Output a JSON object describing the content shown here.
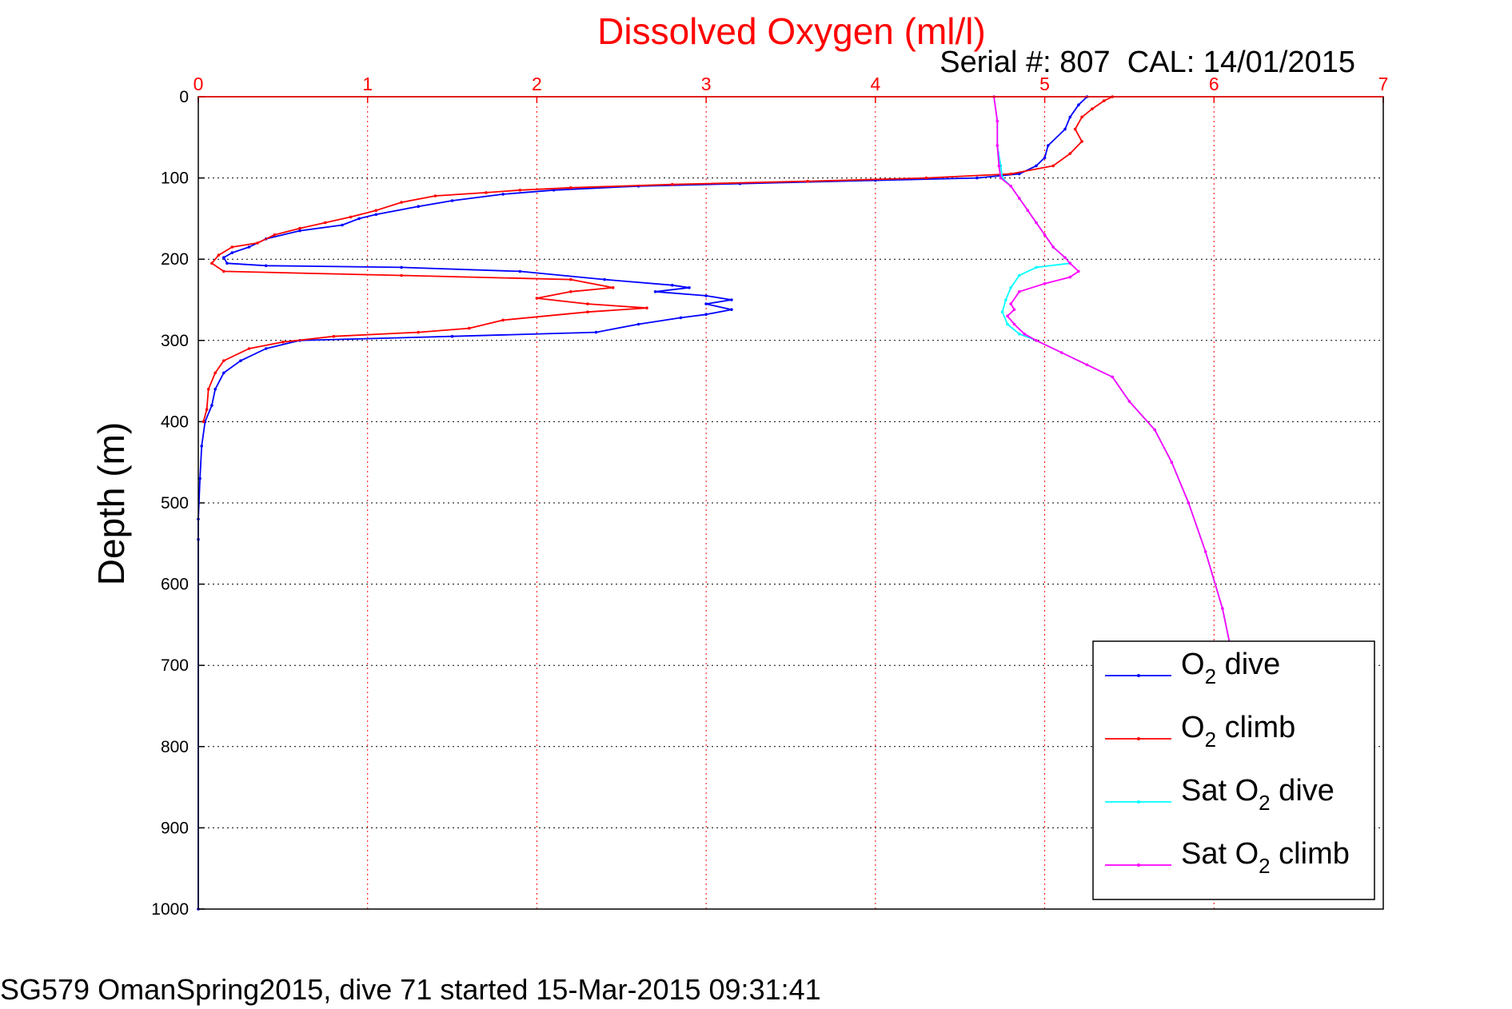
{
  "chart_data": {
    "type": "line",
    "title": "Dissolved Oxygen (ml/l)",
    "subtitle": "Serial #: 807  CAL: 14/01/2015",
    "ylabel": "Depth (m)",
    "footer": "SG579 OmanSpring2015, dive 71 started 15-Mar-2015 09:31:41",
    "xlim": [
      0,
      7
    ],
    "ylim": [
      0,
      1000
    ],
    "y_inverted": true,
    "x_ticks": [
      "0",
      "1",
      "2",
      "3",
      "4",
      "5",
      "6",
      "7"
    ],
    "y_ticks": [
      "0",
      "100",
      "200",
      "300",
      "400",
      "500",
      "600",
      "700",
      "800",
      "900",
      "1000"
    ],
    "grid": true,
    "legend_position": "bottom-right",
    "series": [
      {
        "name": "dive",
        "label_prefix": "O",
        "label_sub": "2",
        "label_suffix": " dive",
        "color": "#0000ff",
        "points": [
          [
            5.25,
            0
          ],
          [
            5.2,
            10
          ],
          [
            5.15,
            25
          ],
          [
            5.12,
            40
          ],
          [
            5.02,
            60
          ],
          [
            5.0,
            75
          ],
          [
            4.95,
            85
          ],
          [
            4.85,
            95
          ],
          [
            4.6,
            100
          ],
          [
            4.0,
            103
          ],
          [
            3.2,
            107
          ],
          [
            2.6,
            110
          ],
          [
            2.1,
            115
          ],
          [
            1.8,
            120
          ],
          [
            1.5,
            128
          ],
          [
            1.3,
            135
          ],
          [
            1.05,
            145
          ],
          [
            0.95,
            150
          ],
          [
            0.85,
            158
          ],
          [
            0.6,
            165
          ],
          [
            0.4,
            175
          ],
          [
            0.3,
            185
          ],
          [
            0.2,
            192
          ],
          [
            0.15,
            198
          ],
          [
            0.17,
            205
          ],
          [
            0.4,
            208
          ],
          [
            1.2,
            210
          ],
          [
            1.9,
            215
          ],
          [
            2.4,
            225
          ],
          [
            2.8,
            232
          ],
          [
            2.9,
            235
          ],
          [
            2.7,
            240
          ],
          [
            3.0,
            245
          ],
          [
            3.15,
            250
          ],
          [
            3.0,
            255
          ],
          [
            3.15,
            262
          ],
          [
            3.0,
            268
          ],
          [
            2.85,
            272
          ],
          [
            2.6,
            280
          ],
          [
            2.35,
            290
          ],
          [
            1.5,
            295
          ],
          [
            0.6,
            300
          ],
          [
            0.4,
            310
          ],
          [
            0.25,
            325
          ],
          [
            0.15,
            340
          ],
          [
            0.1,
            360
          ],
          [
            0.08,
            380
          ],
          [
            0.04,
            400
          ],
          [
            0.02,
            430
          ],
          [
            0.01,
            470
          ],
          [
            0.0,
            520
          ],
          [
            0.0,
            545
          ],
          [
            0.0,
            1000
          ]
        ]
      },
      {
        "name": "climb",
        "label_prefix": "O",
        "label_sub": "2",
        "label_suffix": " climb",
        "color": "#ff0000",
        "points": [
          [
            5.4,
            0
          ],
          [
            5.35,
            5
          ],
          [
            5.28,
            15
          ],
          [
            5.22,
            25
          ],
          [
            5.18,
            40
          ],
          [
            5.22,
            55
          ],
          [
            5.15,
            70
          ],
          [
            5.05,
            85
          ],
          [
            4.8,
            95
          ],
          [
            4.3,
            100
          ],
          [
            3.6,
            104
          ],
          [
            2.8,
            108
          ],
          [
            2.2,
            112
          ],
          [
            1.9,
            115
          ],
          [
            1.7,
            118
          ],
          [
            1.4,
            122
          ],
          [
            1.2,
            130
          ],
          [
            1.05,
            140
          ],
          [
            0.9,
            148
          ],
          [
            0.75,
            155
          ],
          [
            0.6,
            162
          ],
          [
            0.45,
            170
          ],
          [
            0.35,
            180
          ],
          [
            0.2,
            185
          ],
          [
            0.12,
            195
          ],
          [
            0.08,
            205
          ],
          [
            0.15,
            215
          ],
          [
            1.2,
            220
          ],
          [
            2.2,
            225
          ],
          [
            2.45,
            235
          ],
          [
            2.2,
            240
          ],
          [
            2.0,
            248
          ],
          [
            2.3,
            255
          ],
          [
            2.65,
            260
          ],
          [
            2.3,
            265
          ],
          [
            1.8,
            275
          ],
          [
            1.6,
            285
          ],
          [
            1.3,
            290
          ],
          [
            0.8,
            295
          ],
          [
            0.5,
            302
          ],
          [
            0.3,
            310
          ],
          [
            0.15,
            325
          ],
          [
            0.1,
            340
          ],
          [
            0.06,
            360
          ],
          [
            0.05,
            385
          ],
          [
            0.03,
            400
          ]
        ]
      },
      {
        "name": "sat-dive",
        "label_prefix": "Sat O",
        "label_sub": "2",
        "label_suffix": " dive",
        "color": "#00ffff",
        "points": [
          [
            4.7,
            0
          ],
          [
            4.72,
            30
          ],
          [
            4.72,
            60
          ],
          [
            4.74,
            85
          ],
          [
            4.75,
            100
          ],
          [
            4.8,
            110
          ],
          [
            4.85,
            125
          ],
          [
            4.9,
            140
          ],
          [
            4.95,
            155
          ],
          [
            5.0,
            170
          ],
          [
            5.05,
            185
          ],
          [
            5.12,
            198
          ],
          [
            5.15,
            205
          ],
          [
            4.95,
            210
          ],
          [
            4.85,
            220
          ],
          [
            4.8,
            235
          ],
          [
            4.77,
            250
          ],
          [
            4.75,
            265
          ],
          [
            4.78,
            280
          ],
          [
            4.85,
            292
          ],
          [
            4.95,
            300
          ],
          [
            5.1,
            315
          ],
          [
            5.25,
            330
          ],
          [
            5.4,
            345
          ],
          [
            5.5,
            375
          ],
          [
            5.65,
            410
          ],
          [
            5.75,
            450
          ],
          [
            5.85,
            500
          ],
          [
            5.95,
            560
          ],
          [
            6.05,
            630
          ],
          [
            6.1,
            680
          ]
        ]
      },
      {
        "name": "sat-climb",
        "label_prefix": "Sat O",
        "label_sub": "2",
        "label_suffix": " climb",
        "color": "#ff00ff",
        "points": [
          [
            4.7,
            0
          ],
          [
            4.72,
            30
          ],
          [
            4.72,
            60
          ],
          [
            4.73,
            85
          ],
          [
            4.74,
            100
          ],
          [
            4.8,
            110
          ],
          [
            4.85,
            125
          ],
          [
            4.9,
            140
          ],
          [
            4.95,
            155
          ],
          [
            5.0,
            170
          ],
          [
            5.05,
            185
          ],
          [
            5.12,
            198
          ],
          [
            5.15,
            205
          ],
          [
            5.2,
            215
          ],
          [
            5.15,
            222
          ],
          [
            5.0,
            230
          ],
          [
            4.85,
            240
          ],
          [
            4.8,
            255
          ],
          [
            4.82,
            262
          ],
          [
            4.78,
            270
          ],
          [
            4.82,
            280
          ],
          [
            4.88,
            292
          ],
          [
            4.95,
            300
          ],
          [
            5.1,
            315
          ],
          [
            5.25,
            330
          ],
          [
            5.4,
            345
          ],
          [
            5.5,
            375
          ],
          [
            5.65,
            410
          ],
          [
            5.75,
            450
          ],
          [
            5.85,
            500
          ],
          [
            5.95,
            560
          ],
          [
            6.05,
            630
          ],
          [
            6.1,
            680
          ],
          [
            6.25,
            800
          ],
          [
            6.35,
            900
          ],
          [
            6.42,
            985
          ]
        ]
      }
    ]
  }
}
